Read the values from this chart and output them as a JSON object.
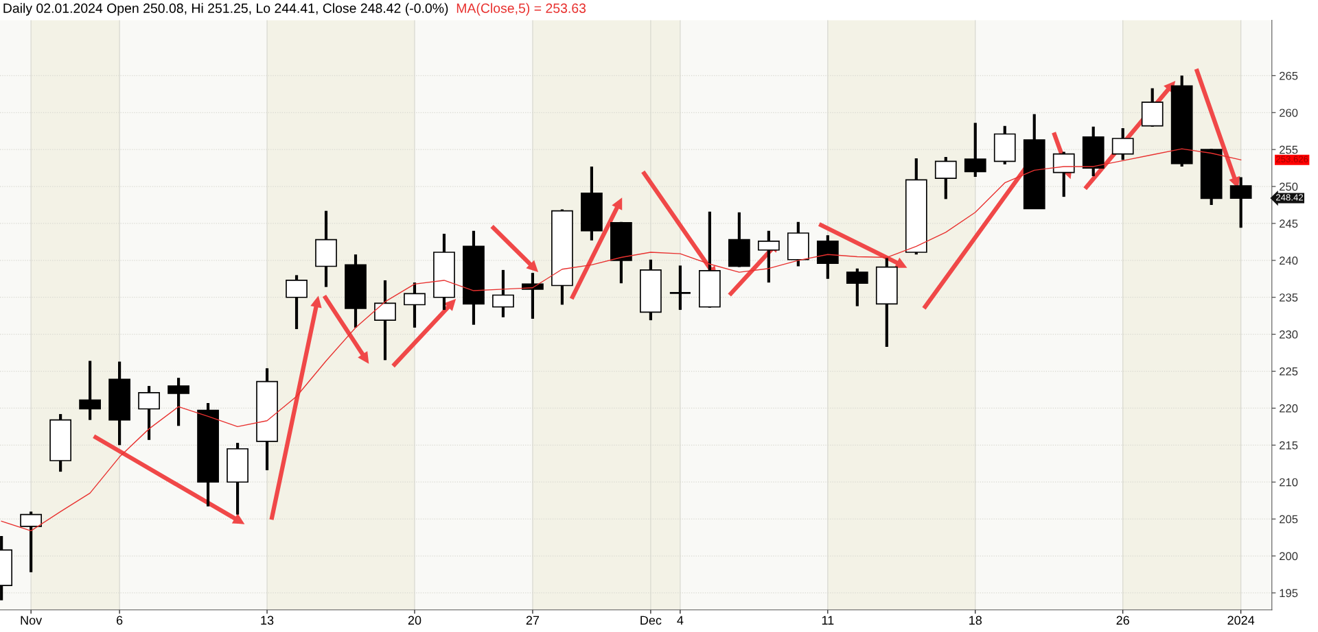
{
  "chart_data": {
    "type": "candlestick",
    "title": "Daily 02.01.2024 Open 250.08, Hi 251.25, Lo 244.41, Close 248.42 (-0.0%)",
    "categories": [
      null,
      "Nov",
      null,
      null,
      "6",
      null,
      null,
      null,
      null,
      "13",
      null,
      null,
      null,
      null,
      "20",
      null,
      null,
      null,
      "27",
      null,
      null,
      null,
      "Dec",
      "4",
      null,
      null,
      null,
      null,
      "11",
      null,
      null,
      null,
      null,
      "18",
      null,
      null,
      null,
      null,
      "26",
      null,
      null,
      null,
      "2024"
    ],
    "ohlc": [
      [
        196.0,
        202.7,
        194.0,
        200.8
      ],
      [
        204.0,
        206.0,
        197.8,
        205.6
      ],
      [
        212.9,
        219.2,
        211.4,
        218.4
      ],
      [
        221.1,
        226.4,
        218.4,
        219.9
      ],
      [
        223.9,
        226.3,
        215.0,
        218.4
      ],
      [
        219.9,
        223.0,
        215.7,
        222.1
      ],
      [
        223.0,
        224.1,
        217.6,
        222.0
      ],
      [
        219.7,
        220.7,
        206.7,
        210.0
      ],
      [
        210.0,
        215.3,
        205.6,
        214.5
      ],
      [
        215.5,
        225.4,
        211.6,
        223.6
      ],
      [
        235.0,
        238.0,
        230.7,
        237.3
      ],
      [
        239.2,
        246.7,
        236.4,
        242.8
      ],
      [
        239.4,
        240.8,
        230.9,
        233.5
      ],
      [
        231.9,
        237.3,
        226.5,
        234.2
      ],
      [
        234.0,
        237.0,
        230.9,
        235.5
      ],
      [
        235.0,
        243.6,
        233.3,
        241.1
      ],
      [
        241.9,
        244.0,
        231.3,
        234.1
      ],
      [
        233.7,
        238.7,
        232.3,
        235.3
      ],
      [
        236.8,
        238.3,
        232.1,
        236.1
      ],
      [
        236.6,
        246.9,
        234.0,
        246.7
      ],
      [
        249.1,
        252.7,
        242.7,
        244.0
      ],
      [
        245.1,
        245.2,
        236.9,
        240.0
      ],
      [
        233.0,
        240.1,
        231.9,
        238.7
      ],
      [
        235.6,
        239.3,
        233.3,
        235.6
      ],
      [
        233.7,
        246.6,
        233.6,
        238.6
      ],
      [
        242.8,
        246.5,
        239.1,
        239.2
      ],
      [
        241.4,
        244.0,
        237.0,
        242.6
      ],
      [
        240.1,
        245.2,
        239.2,
        243.7
      ],
      [
        242.6,
        243.4,
        237.5,
        239.6
      ],
      [
        238.4,
        238.9,
        233.8,
        236.9
      ],
      [
        234.1,
        240.3,
        228.3,
        239.1
      ],
      [
        241.1,
        253.8,
        240.8,
        250.9
      ],
      [
        251.1,
        254.0,
        248.3,
        253.4
      ],
      [
        253.7,
        258.6,
        251.3,
        252.0
      ],
      [
        253.4,
        258.2,
        253.0,
        257.1
      ],
      [
        256.3,
        259.8,
        247.0,
        247.0
      ],
      [
        251.9,
        254.7,
        248.6,
        254.4
      ],
      [
        256.7,
        258.1,
        251.4,
        252.5
      ],
      [
        254.4,
        257.9,
        253.6,
        256.5
      ],
      [
        258.2,
        263.3,
        258.1,
        261.4
      ],
      [
        263.6,
        265.0,
        252.7,
        253.1
      ],
      [
        255.0,
        255.1,
        247.5,
        248.4
      ],
      [
        250.08,
        251.25,
        244.41,
        248.42
      ]
    ],
    "series": [
      {
        "name": "MA(Close,5) = 253.63",
        "type": "line",
        "color": "#e8312f",
        "values": [
          204.7,
          203.4,
          206.0,
          208.5,
          213.4,
          217.2,
          220.2,
          218.9,
          217.5,
          218.3,
          221.6,
          226.4,
          230.9,
          234.4,
          236.8,
          237.3,
          235.9,
          236.1,
          236.3,
          238.8,
          239.4,
          240.4,
          241.1,
          240.9,
          239.5,
          238.4,
          238.9,
          240.0,
          240.8,
          240.5,
          240.4,
          241.9,
          243.8,
          246.5,
          250.5,
          252.2,
          252.7,
          252.7,
          253.5,
          254.3,
          255.1,
          254.5,
          253.6
        ]
      }
    ],
    "annotations": [
      "253.626",
      "248.42"
    ],
    "bands": [
      {
        "axis": "x",
        "from": "Nov",
        "to": "6",
        "color": "#f3f2e6"
      },
      {
        "axis": "x",
        "from": "13",
        "to": "20",
        "color": "#f3f2e6"
      },
      {
        "axis": "x",
        "from": "27",
        "to": "4",
        "color": "#f3f2e6"
      },
      {
        "axis": "x",
        "from": "11",
        "to": "18",
        "color": "#f3f2e6"
      },
      {
        "axis": "x",
        "from": "26",
        "to": "2024",
        "color": "#f3f2e6"
      }
    ],
    "ylim": [
      192.7,
      272.5
    ],
    "yticks": [
      195,
      200,
      205,
      210,
      215,
      220,
      225,
      230,
      235,
      240,
      245,
      250,
      255,
      260,
      265
    ],
    "grid": true
  }
}
